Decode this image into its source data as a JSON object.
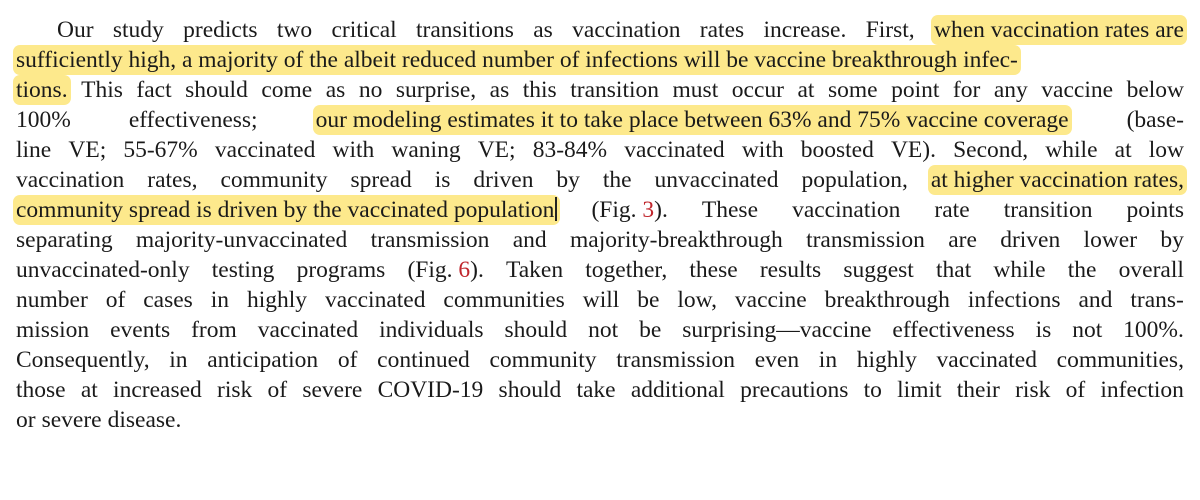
{
  "paragraph": {
    "lines": [
      [
        {
          "t": "Our"
        },
        {
          "t": "study"
        },
        {
          "t": "predicts"
        },
        {
          "t": "two"
        },
        {
          "t": "critical"
        },
        {
          "t": "transitions"
        },
        {
          "t": "as"
        },
        {
          "t": "vaccination"
        },
        {
          "t": "rates"
        },
        {
          "t": "increase."
        },
        {
          "t": "First,"
        },
        {
          "t": "when vaccination rates are",
          "hl": true
        }
      ],
      [
        {
          "t": "sufficiently high, a majority of the albeit reduced number of infections will be vaccine breakthrough infec-",
          "hl": true
        }
      ],
      [
        {
          "t": "tions.",
          "hl": true
        },
        {
          "t": "This"
        },
        {
          "t": "fact"
        },
        {
          "t": "should"
        },
        {
          "t": "come"
        },
        {
          "t": "as"
        },
        {
          "t": "no"
        },
        {
          "t": "surprise,"
        },
        {
          "t": "as"
        },
        {
          "t": "this"
        },
        {
          "t": "transition"
        },
        {
          "t": "must"
        },
        {
          "t": "occur"
        },
        {
          "t": "at"
        },
        {
          "t": "some"
        },
        {
          "t": "point"
        },
        {
          "t": "for"
        },
        {
          "t": "any"
        },
        {
          "t": "vaccine"
        },
        {
          "t": "below"
        }
      ],
      [
        {
          "t": "100%"
        },
        {
          "t": "effectiveness;"
        },
        {
          "t": "our modeling estimates it to take place between 63% and 75% vaccine coverage",
          "hl": true
        },
        {
          "t": "(base-"
        }
      ],
      [
        {
          "t": "line"
        },
        {
          "t": "VE;"
        },
        {
          "t": "55-67%"
        },
        {
          "t": "vaccinated"
        },
        {
          "t": "with"
        },
        {
          "t": "waning"
        },
        {
          "t": "VE;"
        },
        {
          "t": "83-84%"
        },
        {
          "t": "vaccinated"
        },
        {
          "t": "with"
        },
        {
          "t": "boosted"
        },
        {
          "t": "VE)."
        },
        {
          "t": "Second,"
        },
        {
          "t": "while"
        },
        {
          "t": "at"
        },
        {
          "t": "low"
        }
      ],
      [
        {
          "t": "vaccination"
        },
        {
          "t": "rates,"
        },
        {
          "t": "community"
        },
        {
          "t": "spread"
        },
        {
          "t": "is"
        },
        {
          "t": "driven"
        },
        {
          "t": "by"
        },
        {
          "t": "the"
        },
        {
          "t": "unvaccinated"
        },
        {
          "t": "population,"
        },
        {
          "t": "at higher vaccination rates,",
          "hl": true
        }
      ],
      [
        {
          "t": "community spread is driven by the vaccinated population",
          "hl": true,
          "cursor": true
        },
        {
          "t": "(Fig. ",
          "ref": "3",
          "after": ")."
        },
        {
          "t": "These"
        },
        {
          "t": "vaccination"
        },
        {
          "t": "rate"
        },
        {
          "t": "transition"
        },
        {
          "t": "points"
        }
      ],
      [
        {
          "t": "separating"
        },
        {
          "t": "majority-unvaccinated"
        },
        {
          "t": "transmission"
        },
        {
          "t": "and"
        },
        {
          "t": "majority-breakthrough"
        },
        {
          "t": "transmission"
        },
        {
          "t": "are"
        },
        {
          "t": "driven"
        },
        {
          "t": "lower"
        },
        {
          "t": "by"
        }
      ],
      [
        {
          "t": "unvaccinated-only"
        },
        {
          "t": "testing"
        },
        {
          "t": "programs"
        },
        {
          "t": "(Fig. ",
          "ref": "6",
          "after": ")."
        },
        {
          "t": "Taken"
        },
        {
          "t": "together,"
        },
        {
          "t": "these"
        },
        {
          "t": "results"
        },
        {
          "t": "suggest"
        },
        {
          "t": "that"
        },
        {
          "t": "while"
        },
        {
          "t": "the"
        },
        {
          "t": "overall"
        }
      ],
      [
        {
          "t": "number"
        },
        {
          "t": "of"
        },
        {
          "t": "cases"
        },
        {
          "t": "in"
        },
        {
          "t": "highly"
        },
        {
          "t": "vaccinated"
        },
        {
          "t": "communities"
        },
        {
          "t": "will"
        },
        {
          "t": "be"
        },
        {
          "t": "low,"
        },
        {
          "t": "vaccine"
        },
        {
          "t": "breakthrough"
        },
        {
          "t": "infections"
        },
        {
          "t": "and"
        },
        {
          "t": "trans-"
        }
      ],
      [
        {
          "t": "mission"
        },
        {
          "t": "events"
        },
        {
          "t": "from"
        },
        {
          "t": "vaccinated"
        },
        {
          "t": "individuals"
        },
        {
          "t": "should"
        },
        {
          "t": "not"
        },
        {
          "t": "be"
        },
        {
          "t": "surprising—vaccine"
        },
        {
          "t": "effectiveness"
        },
        {
          "t": "is"
        },
        {
          "t": "not"
        },
        {
          "t": "100%."
        }
      ],
      [
        {
          "t": "Consequently,"
        },
        {
          "t": "in"
        },
        {
          "t": "anticipation"
        },
        {
          "t": "of"
        },
        {
          "t": "continued"
        },
        {
          "t": "community"
        },
        {
          "t": "transmission"
        },
        {
          "t": "even"
        },
        {
          "t": "in"
        },
        {
          "t": "highly"
        },
        {
          "t": "vaccinated"
        },
        {
          "t": "communities,"
        }
      ],
      [
        {
          "t": "those"
        },
        {
          "t": "at"
        },
        {
          "t": "increased"
        },
        {
          "t": "risk"
        },
        {
          "t": "of"
        },
        {
          "t": "severe"
        },
        {
          "t": "COVID-19"
        },
        {
          "t": "should"
        },
        {
          "t": "take"
        },
        {
          "t": "additional"
        },
        {
          "t": "precautions"
        },
        {
          "t": "to"
        },
        {
          "t": "limit"
        },
        {
          "t": "their"
        },
        {
          "t": "risk"
        },
        {
          "t": "of"
        },
        {
          "t": "infection"
        }
      ],
      [
        {
          "t": "or"
        },
        {
          "t": "severe"
        },
        {
          "t": "disease."
        }
      ]
    ]
  }
}
